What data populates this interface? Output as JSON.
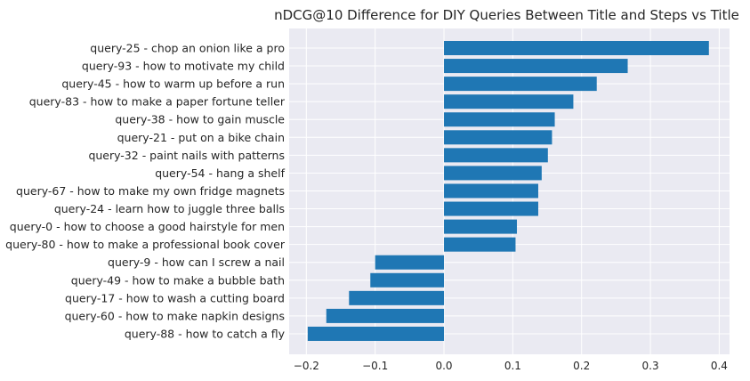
{
  "chart_data": {
    "type": "bar",
    "orientation": "horizontal",
    "title": "nDCG@10 Difference for DIY Queries Between Title and Steps vs Title",
    "xlabel": "",
    "ylabel": "",
    "categories": [
      "query-25 - chop an onion like a pro",
      "query-93 - how to motivate my child",
      "query-45 - how to warm up before a run",
      "query-83 - how to make a paper fortune teller",
      "query-38 - how to gain muscle",
      "query-21 - put on a bike chain",
      "query-32 - paint nails with patterns",
      "query-54 - hang a shelf",
      "query-67 - how to make my own fridge magnets",
      "query-24 - learn how to juggle three balls",
      "query-0 - how to choose a good hairstyle for men",
      "query-80 - how to make a professional book cover",
      "query-9 - how can I screw a nail",
      "query-49 - how to make a bubble bath",
      "query-17 - how to wash a cutting board",
      "query-60 - how to make napkin designs",
      "query-88 - how to catch a fly"
    ],
    "values": [
      0.385,
      0.267,
      0.222,
      0.188,
      0.161,
      0.157,
      0.151,
      0.142,
      0.137,
      0.137,
      0.106,
      0.104,
      -0.1,
      -0.107,
      -0.138,
      -0.171,
      -0.198
    ],
    "xlim": [
      -0.225,
      0.415
    ],
    "xticks": [
      -0.2,
      -0.1,
      0.0,
      0.1,
      0.2,
      0.3,
      0.4
    ],
    "xtick_labels": [
      "−0.2",
      "−0.1",
      "0.0",
      "0.1",
      "0.2",
      "0.3",
      "0.4"
    ],
    "grid": true,
    "bar_color": "#1f77b4",
    "background_color": "#eaeaf2"
  }
}
